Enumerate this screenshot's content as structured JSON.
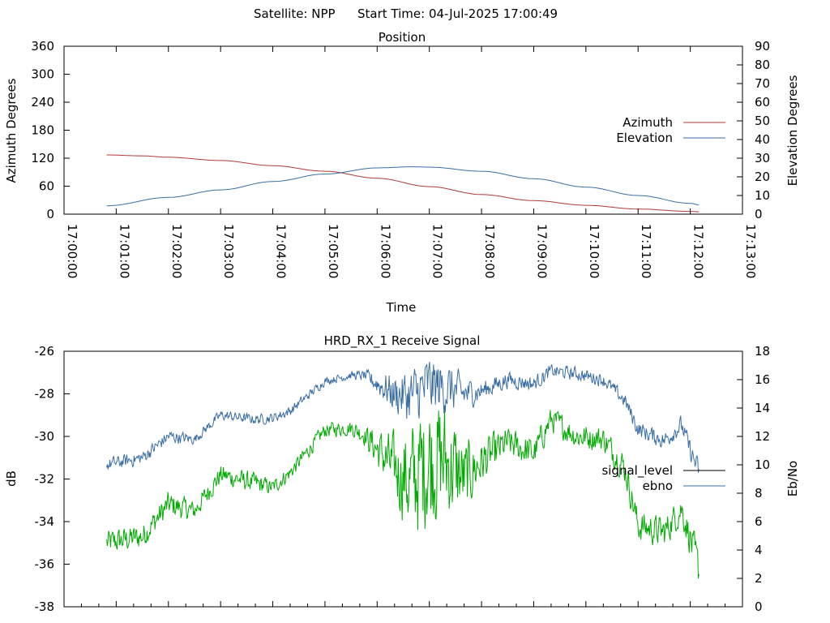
{
  "header": {
    "satellite_label": "Satellite: NPP",
    "start_time_label": "Start Time: 04-Jul-2025 17:00:49"
  },
  "chart_data": [
    {
      "type": "line",
      "title": "Position",
      "xlabel": "Time",
      "ylabel": "Azimuth Degrees",
      "y2label": "Elevation Degrees",
      "xlim": [
        "17:00:00",
        "17:13:00"
      ],
      "ylim": [
        0,
        360
      ],
      "y2lim": [
        0,
        90
      ],
      "x_ticks": [
        "17:00:00",
        "17:01:00",
        "17:02:00",
        "17:03:00",
        "17:04:00",
        "17:05:00",
        "17:06:00",
        "17:07:00",
        "17:08:00",
        "17:09:00",
        "17:10:00",
        "17:11:00",
        "17:12:00",
        "17:13:00"
      ],
      "y_ticks": [
        "0",
        "60",
        "120",
        "180",
        "240",
        "300",
        "360"
      ],
      "y2_ticks": [
        "0",
        "10",
        "20",
        "30",
        "40",
        "50",
        "60",
        "70",
        "80",
        "90"
      ],
      "grid": false,
      "legend": "right",
      "series": [
        {
          "name": "Azimuth",
          "axis": "left",
          "color": "#b03a3a",
          "x": [
            "17:00:49",
            "17:01:30",
            "17:02:00",
            "17:03:00",
            "17:04:00",
            "17:05:00",
            "17:06:00",
            "17:07:00",
            "17:08:00",
            "17:09:00",
            "17:10:00",
            "17:11:00",
            "17:12:00",
            "17:12:10"
          ],
          "y": [
            127,
            125,
            122,
            115,
            104,
            92,
            77,
            59,
            42,
            29,
            19,
            11,
            6,
            5
          ]
        },
        {
          "name": "Elevation",
          "axis": "right",
          "color": "#3a6ea5",
          "x": [
            "17:00:49",
            "17:02:00",
            "17:03:00",
            "17:04:00",
            "17:05:00",
            "17:06:00",
            "17:06:40",
            "17:07:00",
            "17:08:00",
            "17:09:00",
            "17:10:00",
            "17:11:00",
            "17:12:00",
            "17:12:10"
          ],
          "y": [
            4.5,
            9,
            13,
            17.5,
            21.5,
            24.8,
            25.4,
            25.2,
            23,
            19,
            14.5,
            10,
            5.8,
            5
          ]
        }
      ]
    },
    {
      "type": "line",
      "title": "HRD_RX_1 Receive Signal",
      "ylabel": "dB",
      "y2label": "Eb/No",
      "xlim": [
        "17:00:00",
        "17:13:00"
      ],
      "ylim": [
        -38,
        -26
      ],
      "y2lim": [
        0,
        18
      ],
      "y_ticks": [
        "-26",
        "-28",
        "-30",
        "-32",
        "-34",
        "-36",
        "-38"
      ],
      "y2_ticks": [
        "0",
        "2",
        "4",
        "6",
        "8",
        "10",
        "12",
        "14",
        "16",
        "18"
      ],
      "grid": false,
      "legend": "right",
      "series": [
        {
          "name": "signal_level",
          "axis": "left",
          "color": "#00aa00",
          "legend_color": "#000000",
          "x": [
            "17:00:49",
            "17:01:30",
            "17:02:00",
            "17:02:30",
            "17:03:00",
            "17:03:40",
            "17:04:00",
            "17:04:20",
            "17:05:00",
            "17:05:30",
            "17:05:45",
            "17:06:20",
            "17:06:40",
            "17:07:00",
            "17:07:20",
            "17:07:40",
            "17:08:00",
            "17:08:30",
            "17:09:00",
            "17:09:20",
            "17:09:50",
            "17:10:20",
            "17:10:45",
            "17:11:00",
            "17:11:30",
            "17:11:50",
            "17:12:00",
            "17:12:10"
          ],
          "y": [
            -35,
            -34.7,
            -33.2,
            -33.5,
            -31.8,
            -32.2,
            -32.4,
            -31.7,
            -29.7,
            -29.6,
            -29.9,
            -31.5,
            -32.2,
            -31,
            -31.2,
            -32,
            -31.2,
            -30.3,
            -30.8,
            -29.2,
            -30,
            -30.1,
            -31.5,
            -34.2,
            -34.5,
            -33.4,
            -34.8,
            -36.3
          ],
          "amplitude": [
            0.5,
            0.5,
            0.5,
            0.4,
            0.4,
            0.4,
            0.3,
            0.3,
            0.3,
            0.3,
            0.4,
            1.3,
            2.3,
            2.6,
            2.3,
            1.5,
            0.9,
            0.6,
            0.6,
            0.5,
            0.5,
            0.5,
            0.6,
            0.6,
            0.6,
            0.6,
            0.7,
            0.8
          ]
        },
        {
          "name": "ebno",
          "axis": "right",
          "color": "#3a6ea5",
          "x": [
            "17:00:49",
            "17:01:30",
            "17:02:00",
            "17:02:30",
            "17:03:00",
            "17:03:40",
            "17:04:00",
            "17:04:20",
            "17:05:00",
            "17:05:30",
            "17:05:45",
            "17:06:20",
            "17:06:40",
            "17:07:00",
            "17:07:20",
            "17:07:40",
            "17:08:00",
            "17:08:30",
            "17:09:00",
            "17:09:20",
            "17:09:50",
            "17:10:20",
            "17:10:45",
            "17:11:00",
            "17:11:30",
            "17:11:50",
            "17:12:00",
            "17:12:10"
          ],
          "y": [
            10,
            10.5,
            12,
            11.8,
            13.5,
            13.2,
            13.3,
            13.8,
            15.9,
            16.3,
            16.3,
            15,
            14.8,
            15.6,
            15.4,
            15,
            15.2,
            16,
            15.7,
            16.6,
            16.4,
            16,
            14.5,
            12.5,
            11.7,
            12.8,
            11,
            9.5
          ],
          "amplitude": [
            0.4,
            0.4,
            0.4,
            0.3,
            0.3,
            0.3,
            0.3,
            0.3,
            0.25,
            0.25,
            0.3,
            1.2,
            1.7,
            1.8,
            1.5,
            1,
            0.6,
            0.5,
            0.45,
            0.4,
            0.4,
            0.4,
            0.45,
            0.5,
            0.5,
            0.55,
            0.6,
            0.7
          ]
        }
      ]
    }
  ]
}
